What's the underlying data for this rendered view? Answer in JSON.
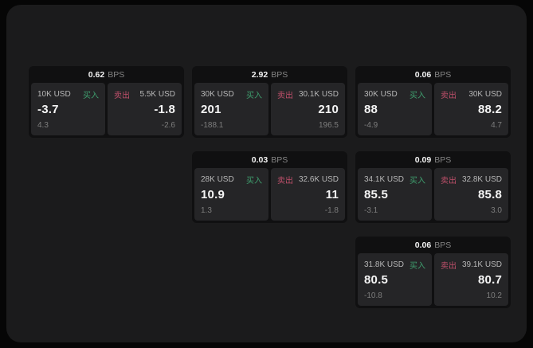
{
  "theme": {
    "page_background": "#060606",
    "surface_background": "#1b1b1c",
    "card_background": "#101011",
    "panel_background": "#252527",
    "buy_color": "#3f9e6e",
    "sell_color": "#c0506b"
  },
  "labels": {
    "buy": "买入",
    "sell": "卖出",
    "bps_unit": "BPS"
  },
  "cards": [
    {
      "bps": "0.62",
      "buy": {
        "size": "10K USD",
        "price": "-3.7",
        "delta": "4.3"
      },
      "sell": {
        "size": "5.5K USD",
        "price": "-1.8",
        "delta": "-2.6"
      }
    },
    {
      "bps": "2.92",
      "buy": {
        "size": "30K USD",
        "price": "201",
        "delta": "-188.1"
      },
      "sell": {
        "size": "30.1K USD",
        "price": "210",
        "delta": "196.5"
      }
    },
    {
      "bps": "0.06",
      "buy": {
        "size": "30K USD",
        "price": "88",
        "delta": "-4.9"
      },
      "sell": {
        "size": "30K USD",
        "price": "88.2",
        "delta": "4.7"
      }
    },
    {
      "bps": "0.03",
      "buy": {
        "size": "28K USD",
        "price": "10.9",
        "delta": "1.3"
      },
      "sell": {
        "size": "32.6K USD",
        "price": "11",
        "delta": "-1.8"
      }
    },
    {
      "bps": "0.09",
      "buy": {
        "size": "34.1K USD",
        "price": "85.5",
        "delta": "-3.1"
      },
      "sell": {
        "size": "32.8K USD",
        "price": "85.8",
        "delta": "3.0"
      }
    },
    {
      "bps": "0.06",
      "buy": {
        "size": "31.8K USD",
        "price": "80.5",
        "delta": "-10.8"
      },
      "sell": {
        "size": "39.1K USD",
        "price": "80.7",
        "delta": "10.2"
      }
    }
  ]
}
